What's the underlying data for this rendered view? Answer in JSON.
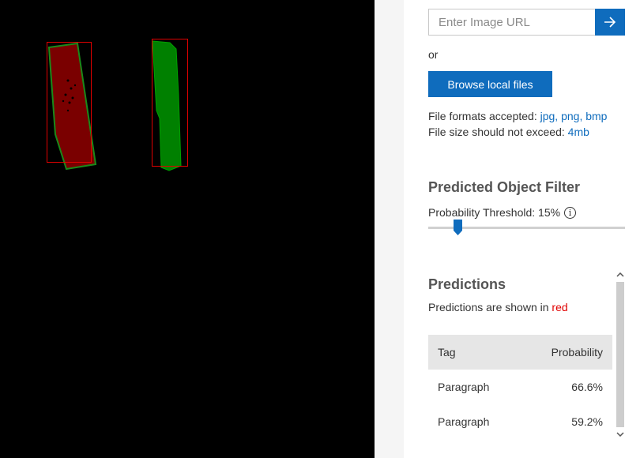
{
  "colors": {
    "accent": "#0f6cbd",
    "prediction_box": "#e00000",
    "region_red": "#7a0000",
    "region_green": "#008000",
    "highlight_red": "#e00000"
  },
  "url_input": {
    "placeholder": "Enter Image URL",
    "submit_icon": "arrow-right-icon"
  },
  "or_text": "or",
  "browse_button": "Browse local files",
  "file_formats": {
    "label": "File formats accepted:",
    "formats": "jpg, png, bmp",
    "size_label": "File size should not exceed:",
    "size_value": "4mb"
  },
  "filter": {
    "title": "Predicted Object Filter",
    "threshold_label": "Probability Threshold: 15%",
    "threshold_value": 15,
    "info_icon": "info-icon"
  },
  "predictions": {
    "title": "Predictions",
    "note_prefix": "Predictions are shown in",
    "note_color_word": "red",
    "headers": [
      "Tag",
      "Probability"
    ],
    "rows": [
      {
        "tag": "Paragraph",
        "probability": "66.6%"
      },
      {
        "tag": "Paragraph",
        "probability": "59.2%"
      }
    ]
  }
}
